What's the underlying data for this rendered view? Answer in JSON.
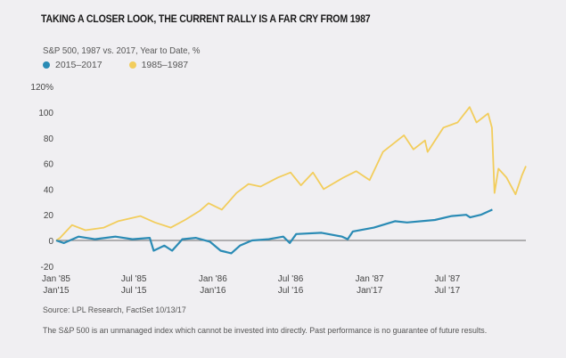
{
  "title": "TAKING A CLOSER LOOK, THE CURRENT RALLY IS A FAR CRY FROM 1987",
  "source": "Source: LPL Research, FactSet   10/13/17",
  "disclaimer": "The S&P 500 is an unmanaged index which cannot be invested into directly. Past performance is no guarantee of future results.",
  "chart_data": {
    "type": "line",
    "title": "S&P 500, 1987 vs. 2017, Year to Date, %",
    "ylim": [
      -20,
      120
    ],
    "yticks": [
      {
        "value": 120,
        "label": "120%"
      },
      {
        "value": 100,
        "label": "100"
      },
      {
        "value": 80,
        "label": "80"
      },
      {
        "value": 60,
        "label": "60"
      },
      {
        "value": 40,
        "label": "40"
      },
      {
        "value": 20,
        "label": "20"
      },
      {
        "value": 0,
        "label": "0"
      },
      {
        "value": -20,
        "label": "-20"
      }
    ],
    "xticks": [
      {
        "date": "1985-01-01",
        "label_top": "Jan '85",
        "label_bottom": "Jan'15"
      },
      {
        "date": "1985-07-01",
        "label_top": "Jul '85",
        "label_bottom": "Jul '15"
      },
      {
        "date": "1986-01-01",
        "label_top": "Jan '86",
        "label_bottom": "Jan'16"
      },
      {
        "date": "1986-07-01",
        "label_top": "Jul '86",
        "label_bottom": "Jul '16"
      },
      {
        "date": "1987-01-01",
        "label_top": "Jan '87",
        "label_bottom": "Jan'17"
      },
      {
        "date": "1987-07-01",
        "label_top": "Jul '87",
        "label_bottom": "Jul '17"
      }
    ],
    "xlim": [
      "1985-01-01",
      "1987-12-31"
    ],
    "grid": false,
    "legend_position": "top-left",
    "series": [
      {
        "name": "2015–2017",
        "color": "#2a8bb5",
        "start": "2015-01-01",
        "points": [
          [
            "2015-01-01",
            0
          ],
          [
            "2015-01-19",
            -2
          ],
          [
            "2015-02-22",
            3
          ],
          [
            "2015-04-01",
            1
          ],
          [
            "2015-05-19",
            3
          ],
          [
            "2015-06-28",
            1
          ],
          [
            "2015-08-07",
            2
          ],
          [
            "2015-08-16",
            -8
          ],
          [
            "2015-09-10",
            -4
          ],
          [
            "2015-09-28",
            -8
          ],
          [
            "2015-10-22",
            1
          ],
          [
            "2015-11-22",
            2
          ],
          [
            "2015-12-25",
            -1
          ],
          [
            "2016-01-19",
            -8
          ],
          [
            "2016-02-13",
            -10
          ],
          [
            "2016-03-04",
            -4
          ],
          [
            "2016-04-01",
            0
          ],
          [
            "2016-05-10",
            1
          ],
          [
            "2016-06-13",
            3
          ],
          [
            "2016-06-28",
            -2
          ],
          [
            "2016-07-13",
            5
          ],
          [
            "2016-09-10",
            6
          ],
          [
            "2016-10-28",
            3
          ],
          [
            "2016-11-10",
            1
          ],
          [
            "2016-11-22",
            7
          ],
          [
            "2017-01-10",
            10
          ],
          [
            "2017-02-28",
            15
          ],
          [
            "2017-03-28",
            14
          ],
          [
            "2017-06-01",
            16
          ],
          [
            "2017-07-10",
            19
          ],
          [
            "2017-08-13",
            20
          ],
          [
            "2017-08-22",
            18
          ],
          [
            "2017-09-16",
            20
          ],
          [
            "2017-10-13",
            24
          ]
        ]
      },
      {
        "name": "1985–1987",
        "color": "#f2cd5c",
        "start": "1985-01-01",
        "points": [
          [
            "1985-01-01",
            0
          ],
          [
            "1985-01-10",
            2
          ],
          [
            "1985-02-07",
            12
          ],
          [
            "1985-03-10",
            8
          ],
          [
            "1985-04-22",
            10
          ],
          [
            "1985-05-25",
            15
          ],
          [
            "1985-07-16",
            19
          ],
          [
            "1985-08-19",
            14
          ],
          [
            "1985-09-25",
            10
          ],
          [
            "1985-10-28",
            16
          ],
          [
            "1985-12-01",
            23
          ],
          [
            "1985-12-22",
            29
          ],
          [
            "1986-01-22",
            24
          ],
          [
            "1986-02-25",
            37
          ],
          [
            "1986-03-25",
            44
          ],
          [
            "1986-04-22",
            42
          ],
          [
            "1986-06-01",
            49
          ],
          [
            "1986-07-01",
            53
          ],
          [
            "1986-07-25",
            43
          ],
          [
            "1986-08-22",
            53
          ],
          [
            "1986-09-16",
            40
          ],
          [
            "1986-11-01",
            49
          ],
          [
            "1986-12-01",
            54
          ],
          [
            "1987-01-01",
            47
          ],
          [
            "1987-02-01",
            69
          ],
          [
            "1987-03-22",
            82
          ],
          [
            "1987-04-13",
            71
          ],
          [
            "1987-05-10",
            78
          ],
          [
            "1987-05-16",
            69
          ],
          [
            "1987-06-22",
            88
          ],
          [
            "1987-07-25",
            92
          ],
          [
            "1987-08-22",
            104
          ],
          [
            "1987-09-07",
            92
          ],
          [
            "1987-10-04",
            99
          ],
          [
            "1987-10-13",
            88
          ],
          [
            "1987-10-19",
            37
          ],
          [
            "1987-10-28",
            56
          ],
          [
            "1987-11-16",
            49
          ],
          [
            "1987-12-07",
            36
          ],
          [
            "1987-12-22",
            51
          ],
          [
            "1987-12-31",
            58
          ]
        ]
      }
    ]
  }
}
